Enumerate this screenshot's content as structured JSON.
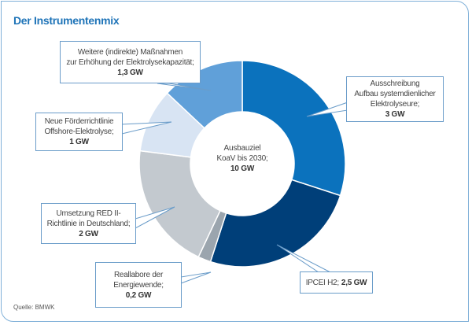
{
  "title": "Der Instrumentenmix",
  "source": "Quelle: BMWK",
  "chart_data": {
    "type": "pie",
    "subtype": "donut",
    "title": "Der Instrumentenmix",
    "unit": "GW",
    "center_label": {
      "line1": "Ausbauziel",
      "line2": "KoaV bis 2030;",
      "value": "10 GW"
    },
    "total": 10,
    "slices": [
      {
        "name": "Ausschreibung Aufbau systemdienlicher Elektrolyseure",
        "lines": [
          "Ausschreibung",
          "Aufbau systemdienlicher",
          "Elektrolyseure;"
        ],
        "value_label": "3 GW",
        "value": 3,
        "color": "#0b72bd"
      },
      {
        "name": "IPCEI H2",
        "lines": [
          "IPCEI H2;"
        ],
        "value_label": "2,5 GW",
        "value": 2.5,
        "color": "#003f79"
      },
      {
        "name": "Reallabore der Energiewende",
        "lines": [
          "Reallabore der",
          "Energiewende;"
        ],
        "value_label": "0,2 GW",
        "value": 0.2,
        "color": "#9ba5ae"
      },
      {
        "name": "Umsetzung RED II-Richtlinie in Deutschland",
        "lines": [
          "Umsetzung RED II-",
          "Richtlinie in Deutschland;"
        ],
        "value_label": "2 GW",
        "value": 2,
        "color": "#c3c9cf"
      },
      {
        "name": "Neue Förderrichtlinie Offshore-Elektrolyse",
        "lines": [
          "Neue Förderrichtlinie",
          "Offshore-Elektrolyse;"
        ],
        "value_label": "1 GW",
        "value": 1,
        "color": "#d8e4f3"
      },
      {
        "name": "Weitere (indirekte) Maßnahmen zur Erhöhung der Elektrolysekapazität",
        "lines": [
          "Weitere (indirekte) Maßnahmen",
          "zur Erhöhung der Elektrolysekapazität;"
        ],
        "value_label": "1,3 GW",
        "value": 1.3,
        "color": "#60a0d9"
      }
    ]
  }
}
